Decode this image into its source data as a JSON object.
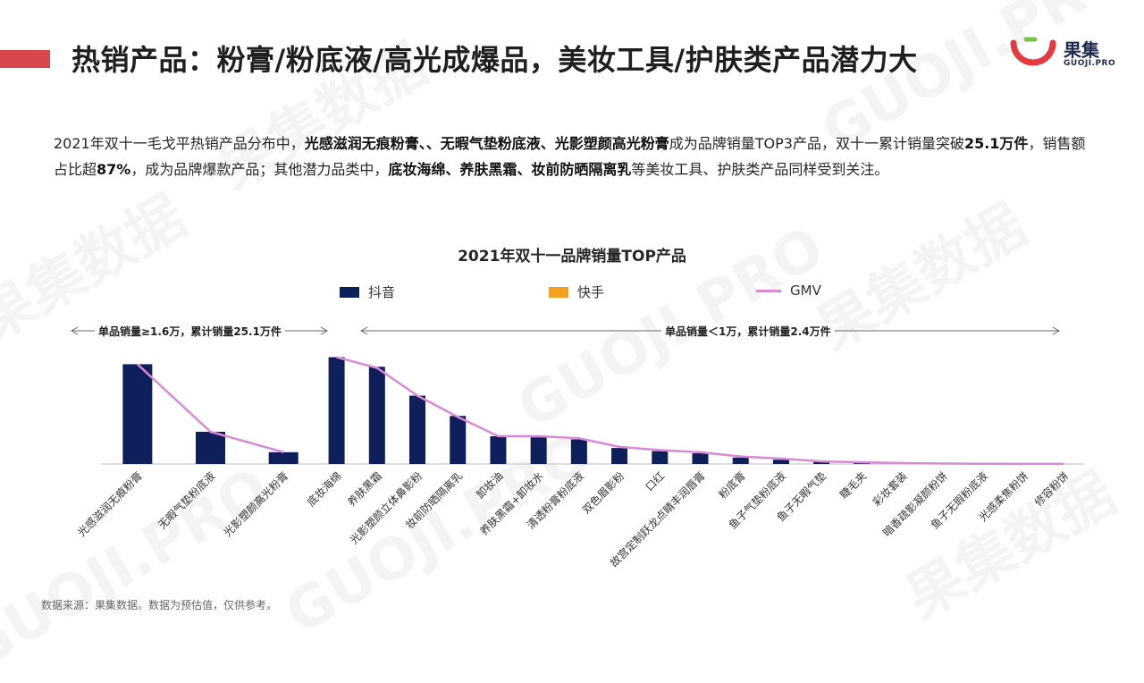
{
  "header": {
    "title": "热销产品：粉膏/粉底液/高光成爆品，美妆工具/护肤类产品潜力大",
    "accent_color": "#d9464b"
  },
  "logo": {
    "name": "果集",
    "sub": "GUOJI.PRO",
    "icon": "guoji-logo-icon"
  },
  "summary": {
    "p1": "2021年双十一毛戈平热销产品分布中，",
    "b1": "光感滋润无痕粉膏、、无暇气垫粉底液、光影塑颜高光粉膏",
    "p2": "成为品牌销量TOP3产品，双十一累计销量突破",
    "b2": "25.1万件",
    "p3": "，销售额占比超",
    "b3": "87%",
    "p4": "，成为品牌爆款产品；其他潜力品类中，",
    "b4": "底妆海绵、养肤黑霜、妆前防晒隔离乳",
    "p5": "等美妆工具、护肤类产品同样受到关注。"
  },
  "chart_data": {
    "type": "bar",
    "title": "2021年双十一品牌销量TOP产品",
    "legend": [
      {
        "name": "抖音",
        "color": "#0f1f5c",
        "kind": "bar"
      },
      {
        "name": "快手",
        "color": "#f5a020",
        "kind": "bar"
      },
      {
        "name": "GMV",
        "color": "#d98ad6",
        "kind": "line"
      }
    ],
    "groups": [
      {
        "label": "单品销量≥1.6万，累计销量25.1万件",
        "categories": [
          "光感滋润无痕粉膏",
          "无暇气垫粉底液",
          "光影塑颜高光粉膏"
        ],
        "series": [
          {
            "name": "抖音",
            "values": [
              12.7,
              4.1,
              1.5
            ]
          },
          {
            "name": "快手",
            "values": [
              0,
              0,
              0
            ]
          }
        ],
        "gmv": [
          12.7,
          4.1,
          1.5
        ],
        "ylim": [
          0,
          14
        ]
      },
      {
        "label": "单品销量＜1万，累计销量2.4万件",
        "categories": [
          "底妆海绵",
          "养肤黑霜",
          "光影塑颜立体鼻影粉",
          "妆前防晒隔离乳",
          "卸妆油",
          "养肤黑霜+卸妆水",
          "清透粉膏粉底液",
          "双色眉影粉",
          "口红",
          "故宫定制跃龙点睛丰润唇膏",
          "粉底膏",
          "鱼子气垫粉底液",
          "鱼子无暇气垫",
          "睫毛夹",
          "彩妆套装",
          "暗香疏影凝颜粉饼",
          "鱼子无瑕粉底液",
          "光感柔焦粉饼",
          "修容粉饼"
        ],
        "series": [
          {
            "name": "抖音",
            "values": [
              5.0,
              4.55,
              3.2,
              2.25,
              1.3,
              1.25,
              1.15,
              0.75,
              0.6,
              0.5,
              0.3,
              0.2,
              0.1,
              0.06,
              0.03,
              0.02,
              0.01,
              0.005,
              0.003
            ]
          },
          {
            "name": "快手",
            "values": [
              0,
              0,
              0,
              0,
              0,
              0,
              0,
              0,
              0,
              0,
              0,
              0,
              0,
              0,
              0,
              0,
              0,
              0,
              0
            ]
          }
        ],
        "gmv": [
          5.0,
          4.5,
          3.2,
          2.2,
          1.3,
          1.3,
          1.2,
          0.8,
          0.65,
          0.55,
          0.35,
          0.25,
          0.12,
          0.08,
          0.04,
          0.02,
          0.01,
          0.005,
          0.003
        ],
        "ylim": [
          0,
          5.4
        ]
      }
    ]
  },
  "source": "数据来源：果集数据。数据为预估值，仅供参考。",
  "watermark": {
    "cn": "果集数据",
    "en": "GUOJI.PRO"
  }
}
